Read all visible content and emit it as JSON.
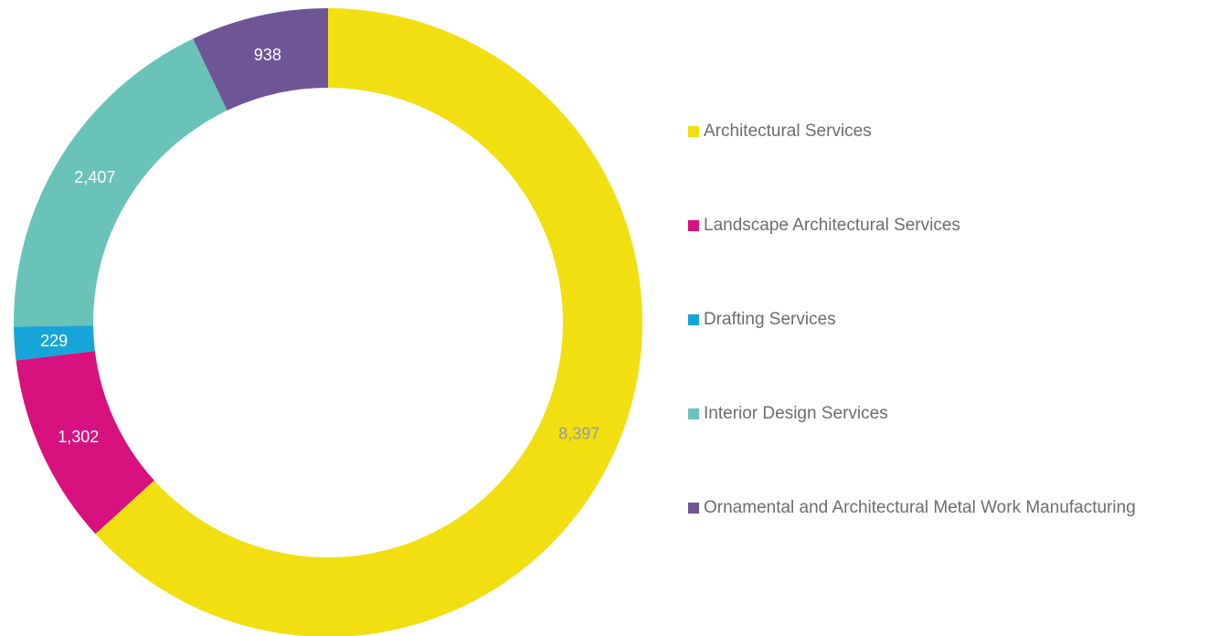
{
  "chart_data": {
    "type": "pie",
    "variant": "donut",
    "categories": [
      "Architectural Services",
      "Landscape Architectural Services",
      "Drafting Services",
      "Interior Design Services",
      "Ornamental and Architectural Metal Work Manufacturing"
    ],
    "values": [
      8397,
      1302,
      229,
      2407,
      938
    ],
    "value_labels": [
      "8,397",
      "1,302",
      "229",
      "2,407",
      "938"
    ],
    "colors": [
      "#f1df12",
      "#d7117e",
      "#16a5d8",
      "#69c3b8",
      "#6e5596"
    ],
    "label_colors": [
      "#9a9a9a",
      "#ffffff",
      "#ffffff",
      "#ffffff",
      "#ffffff"
    ],
    "title": "",
    "legend_position": "right",
    "start_angle": "top",
    "direction": "clockwise"
  },
  "legend": {
    "items": [
      {
        "label": "Architectural Services",
        "color": "#f1df12"
      },
      {
        "label": "Landscape Architectural Services",
        "color": "#d7117e"
      },
      {
        "label": "Drafting Services",
        "color": "#16a5d8"
      },
      {
        "label": "Interior Design Services",
        "color": "#69c3b8"
      },
      {
        "label": "Ornamental and Architectural Metal Work Manufacturing",
        "color": "#6e5596"
      }
    ]
  }
}
